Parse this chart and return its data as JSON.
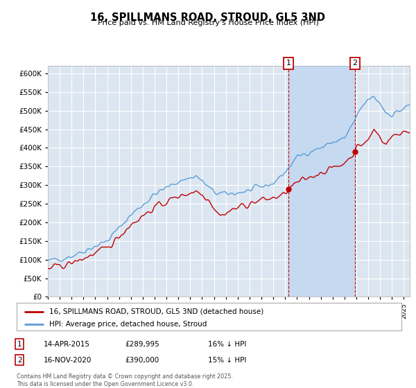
{
  "title": "16, SPILLMANS ROAD, STROUD, GL5 3ND",
  "subtitle": "Price paid vs. HM Land Registry's House Price Index (HPI)",
  "ylim": [
    0,
    620000
  ],
  "yticks": [
    0,
    50000,
    100000,
    150000,
    200000,
    250000,
    300000,
    350000,
    400000,
    450000,
    500000,
    550000,
    600000
  ],
  "hpi_color": "#5b9bd5",
  "price_color": "#c00000",
  "point1": {
    "date": "14-APR-2015",
    "price": 289995,
    "hpi_diff": "16% ↓ HPI",
    "year": 2015.28
  },
  "point2": {
    "date": "16-NOV-2020",
    "price": 390000,
    "hpi_diff": "15% ↓ HPI",
    "year": 2020.88
  },
  "legend1": "16, SPILLMANS ROAD, STROUD, GL5 3ND (detached house)",
  "legend2": "HPI: Average price, detached house, Stroud",
  "footer": "Contains HM Land Registry data © Crown copyright and database right 2025.\nThis data is licensed under the Open Government Licence v3.0.",
  "bg_color": "#dce6f1",
  "highlight_color": "#c5d9f1",
  "grid_color": "#ffffff"
}
